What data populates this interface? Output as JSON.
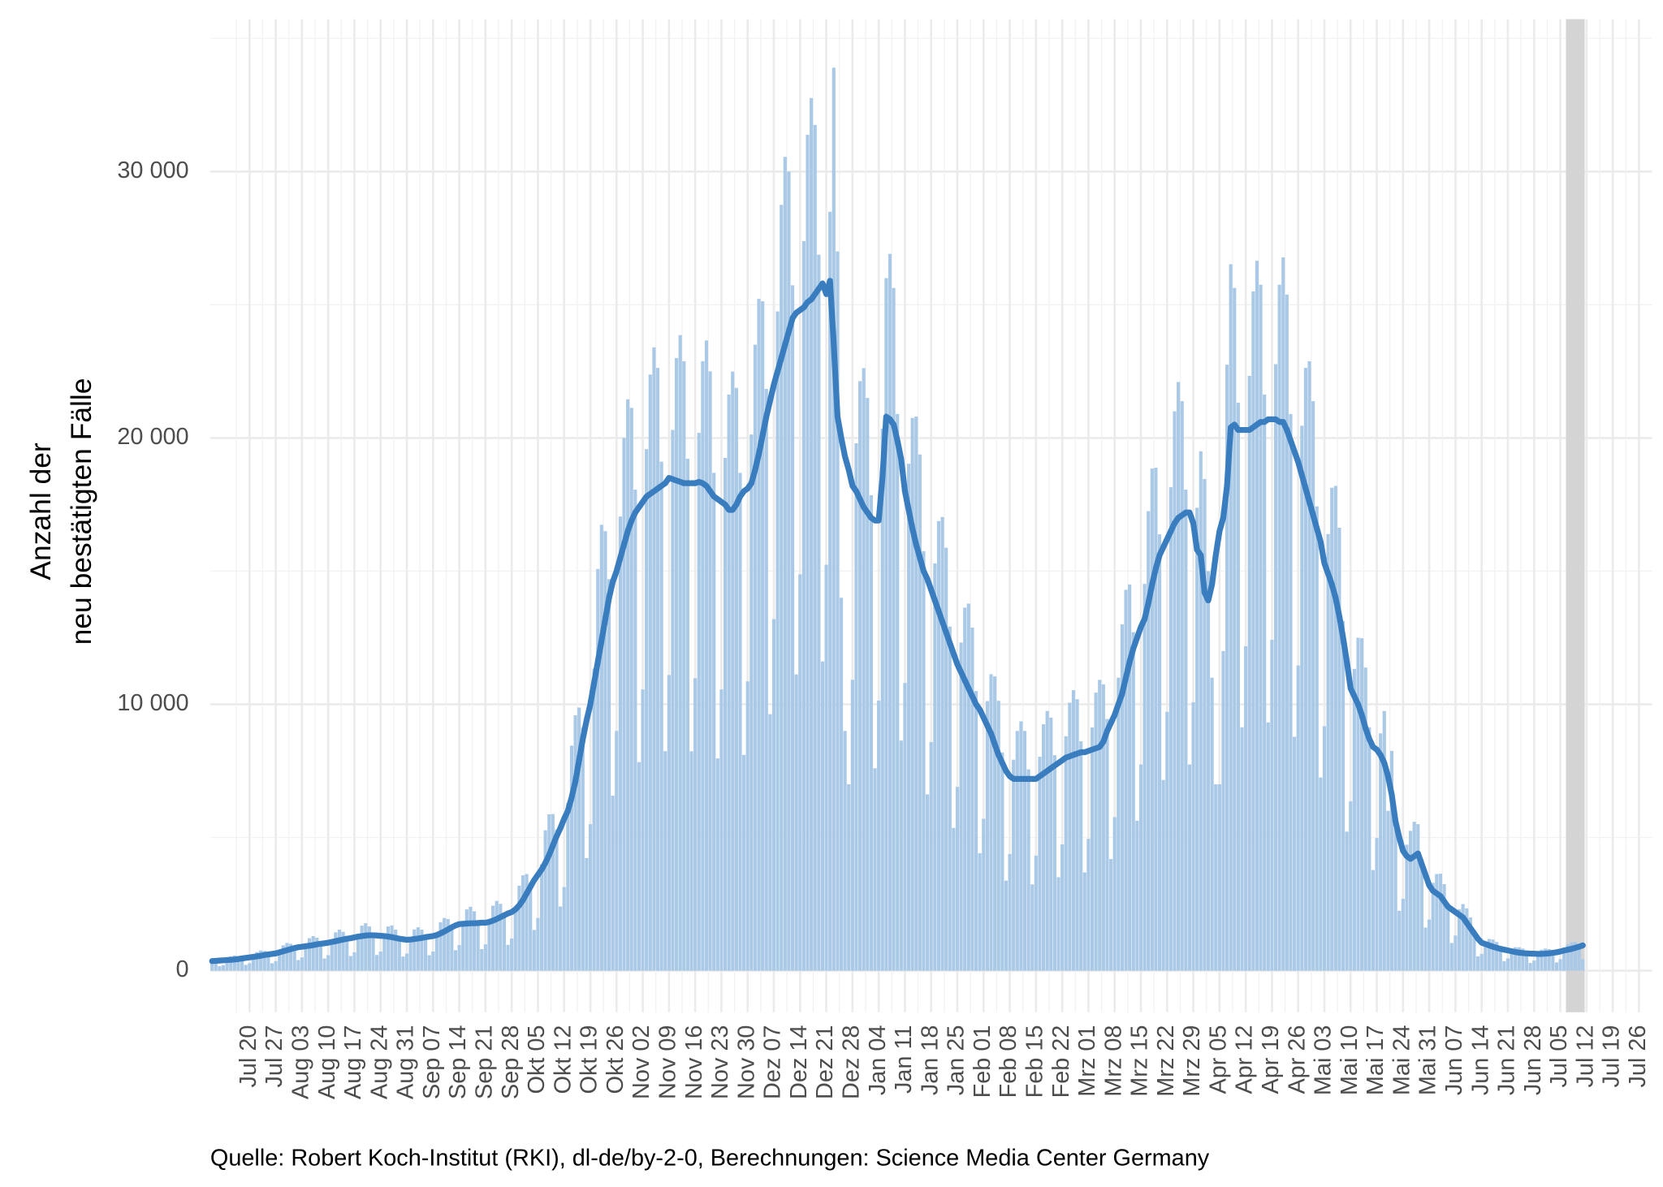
{
  "chart_data": {
    "type": "bar",
    "ylabel": [
      "Anzahl der",
      "neu bestätigten Fälle"
    ],
    "caption": "Quelle: Robert Koch-Institut (RKI), dl-de/by-2-0, Berechnungen: Science Media Center Germany",
    "categories": [
      null,
      null,
      null,
      null,
      null,
      null,
      null,
      null,
      null,
      null,
      "Jul 20",
      null,
      null,
      null,
      null,
      null,
      null,
      "Jul 27",
      null,
      null,
      null,
      null,
      null,
      null,
      "Aug 03",
      null,
      null,
      null,
      null,
      null,
      null,
      "Aug 10",
      null,
      null,
      null,
      null,
      null,
      null,
      "Aug 17",
      null,
      null,
      null,
      null,
      null,
      null,
      "Aug 24",
      null,
      null,
      null,
      null,
      null,
      null,
      "Aug 31",
      null,
      null,
      null,
      null,
      null,
      null,
      "Sep 07",
      null,
      null,
      null,
      null,
      null,
      null,
      "Sep 14",
      null,
      null,
      null,
      null,
      null,
      null,
      "Sep 21",
      null,
      null,
      null,
      null,
      null,
      null,
      "Sep 28",
      null,
      null,
      null,
      null,
      null,
      null,
      "Okt 05",
      null,
      null,
      null,
      null,
      null,
      null,
      "Okt 12",
      null,
      null,
      null,
      null,
      null,
      null,
      "Okt 19",
      null,
      null,
      null,
      null,
      null,
      null,
      "Okt 26",
      null,
      null,
      null,
      null,
      null,
      null,
      "Nov 02",
      null,
      null,
      null,
      null,
      null,
      null,
      "Nov 09",
      null,
      null,
      null,
      null,
      null,
      null,
      "Nov 16",
      null,
      null,
      null,
      null,
      null,
      null,
      "Nov 23",
      null,
      null,
      null,
      null,
      null,
      null,
      "Nov 30",
      null,
      null,
      null,
      null,
      null,
      null,
      "Dez 07",
      null,
      null,
      null,
      null,
      null,
      null,
      "Dez 14",
      null,
      null,
      null,
      null,
      null,
      null,
      "Dez 21",
      null,
      null,
      null,
      null,
      null,
      null,
      "Dez 28",
      null,
      null,
      null,
      null,
      null,
      null,
      "Jan 04",
      null,
      null,
      null,
      null,
      null,
      null,
      "Jan 11",
      null,
      null,
      null,
      null,
      null,
      null,
      "Jan 18",
      null,
      null,
      null,
      null,
      null,
      null,
      "Jan 25",
      null,
      null,
      null,
      null,
      null,
      null,
      "Feb 01",
      null,
      null,
      null,
      null,
      null,
      null,
      "Feb 08",
      null,
      null,
      null,
      null,
      null,
      null,
      "Feb 15",
      null,
      null,
      null,
      null,
      null,
      null,
      "Feb 22",
      null,
      null,
      null,
      null,
      null,
      null,
      "Mrz 01",
      null,
      null,
      null,
      null,
      null,
      null,
      "Mrz 08",
      null,
      null,
      null,
      null,
      null,
      null,
      "Mrz 15",
      null,
      null,
      null,
      null,
      null,
      null,
      "Mrz 22",
      null,
      null,
      null,
      null,
      null,
      null,
      "Mrz 29",
      null,
      null,
      null,
      null,
      null,
      null,
      "Apr 05",
      null,
      null,
      null,
      null,
      null,
      null,
      "Apr 12",
      null,
      null,
      null,
      null,
      null,
      null,
      "Apr 19",
      null,
      null,
      null,
      null,
      null,
      null,
      "Apr 26",
      null,
      null,
      null,
      null,
      null,
      null,
      "Mai 03",
      null,
      null,
      null,
      null,
      null,
      null,
      "Mai 10",
      null,
      null,
      null,
      null,
      null,
      null,
      "Mai 17",
      null,
      null,
      null,
      null,
      null,
      null,
      "Mai 24",
      null,
      null,
      null,
      null,
      null,
      null,
      "Mai 31",
      null,
      null,
      null,
      null,
      null,
      null,
      "Jun 07",
      null,
      null,
      null,
      null,
      null,
      null,
      "Jun 14",
      null,
      null,
      null,
      null,
      null,
      null,
      "Jun 21",
      null,
      null,
      null,
      null,
      null,
      null,
      "Jun 28",
      null,
      null,
      null,
      null,
      null,
      null,
      "Jul 05",
      null,
      null,
      null,
      null,
      null,
      null,
      "Jul 12",
      null,
      null,
      null,
      null,
      null,
      null,
      "Jul 19",
      null,
      null,
      null,
      null,
      null,
      null,
      "Jul 26",
      null,
      null,
      null
    ],
    "series": [
      {
        "type": "bar",
        "color": "#a9c9e6",
        "values": [
          450,
          390,
          170,
          210,
          420,
          530,
          570,
          550,
          480,
          220,
          280,
          550,
          700,
          760,
          740,
          640,
          280,
          360,
          720,
          950,
          1040,
          1010,
          890,
          400,
          500,
          970,
          1220,
          1300,
          1240,
          1060,
          460,
          580,
          1130,
          1440,
          1540,
          1460,
          1260,
          550,
          690,
          1340,
          1690,
          1780,
          1660,
          1400,
          590,
          720,
          1370,
          1660,
          1700,
          1540,
          1260,
          530,
          640,
          1230,
          1550,
          1630,
          1540,
          1320,
          580,
          720,
          1410,
          1820,
          1980,
          1940,
          1710,
          770,
          960,
          1850,
          2300,
          2400,
          2230,
          1880,
          810,
          990,
          1920,
          2440,
          2620,
          2510,
          2180,
          970,
          1210,
          2420,
          3190,
          3580,
          3630,
          3310,
          1530,
          1980,
          3990,
          5270,
          5870,
          5880,
          5300,
          2410,
          3140,
          6300,
          8450,
          9590,
          9880,
          9140,
          4230,
          5500,
          11340,
          15080,
          16740,
          16500,
          14700,
          6570,
          9000,
          17050,
          20000,
          21450,
          21130,
          18060,
          7830,
          10560,
          19580,
          22380,
          23400,
          22630,
          19110,
          8240,
          11100,
          20300,
          23000,
          23860,
          22880,
          19220,
          8240,
          10980,
          20190,
          22880,
          23660,
          22500,
          18690,
          7970,
          10560,
          19250,
          21630,
          22490,
          21880,
          18690,
          8100,
          10860,
          20130,
          23500,
          25220,
          25130,
          21840,
          9630,
          13200,
          24750,
          28750,
          30550,
          30000,
          25730,
          11120,
          14880,
          27390,
          31380,
          32760,
          31750,
          26880,
          11610,
          15240,
          28490,
          33900,
          27000,
          14000,
          9000,
          7000,
          10920,
          19800,
          22130,
          22620,
          21500,
          17850,
          7600,
          10140,
          20350,
          26000,
          26910,
          25630,
          20900,
          8640,
          10800,
          19030,
          20750,
          20800,
          19380,
          15750,
          6620,
          8580,
          15290,
          16880,
          17030,
          15880,
          12920,
          5360,
          6900,
          12320,
          13630,
          13780,
          12880,
          10500,
          4410,
          5700,
          10120,
          11130,
          11050,
          10130,
          8190,
          3380,
          4380,
          7920,
          9000,
          9360,
          9000,
          7560,
          3240,
          4320,
          8030,
          9250,
          9750,
          9500,
          8090,
          3510,
          4740,
          8800,
          10060,
          10530,
          10190,
          8610,
          3690,
          4950,
          9130,
          10440,
          10920,
          10750,
          9450,
          4190,
          5760,
          11000,
          13000,
          14300,
          14500,
          12710,
          5630,
          7740,
          14520,
          17250,
          18850,
          18880,
          16380,
          7160,
          9720,
          18150,
          21000,
          22100,
          21380,
          18060,
          7740,
          10080,
          17380,
          19500,
          18460,
          15000,
          11000,
          7000,
          7000,
          12000,
          22750,
          26520,
          25630,
          21320,
          9140,
          12180,
          22330,
          25500,
          26650,
          25750,
          21630,
          9320,
          12420,
          22770,
          25750,
          26780,
          25380,
          20900,
          8780,
          11460,
          20460,
          22630,
          22880,
          21380,
          17430,
          7250,
          9180,
          16390,
          18130,
          18200,
          16630,
          13130,
          5220,
          6360,
          11330,
          12500,
          12480,
          11380,
          9140,
          3780,
          4980,
          8910,
          9750,
          6000,
          8250,
          5880,
          2250,
          2700,
          4730,
          5250,
          5590,
          5500,
          4200,
          1620,
          1920,
          3300,
          3630,
          3640,
          3250,
          2520,
          1040,
          1320,
          2310,
          2500,
          2340,
          2000,
          1470,
          540,
          630,
          1100,
          1190,
          1170,
          1080,
          860,
          360,
          460,
          800,
          880,
          880,
          830,
          680,
          290,
          380,
          690,
          790,
          830,
          810,
          700,
          310,
          430,
          840,
          990,
          1070,
          1080,
          950,
          430,
          null,
          null,
          null,
          null,
          null,
          null,
          null,
          null,
          null,
          null,
          null,
          null,
          null,
          null,
          null,
          null,
          null,
          null
        ]
      },
      {
        "type": "line",
        "color": "#3a7dbf",
        "values": [
          360,
          370,
          380,
          390,
          400,
          410,
          420,
          440,
          460,
          480,
          500,
          520,
          540,
          560,
          590,
          610,
          630,
          650,
          690,
          730,
          770,
          810,
          850,
          880,
          900,
          920,
          940,
          960,
          990,
          1010,
          1030,
          1050,
          1080,
          1110,
          1140,
          1170,
          1200,
          1220,
          1250,
          1280,
          1300,
          1320,
          1330,
          1330,
          1320,
          1310,
          1300,
          1280,
          1260,
          1230,
          1200,
          1180,
          1160,
          1170,
          1190,
          1210,
          1230,
          1260,
          1280,
          1300,
          1340,
          1400,
          1470,
          1550,
          1630,
          1700,
          1750,
          1760,
          1770,
          1780,
          1780,
          1790,
          1800,
          1800,
          1830,
          1880,
          1940,
          2010,
          2080,
          2150,
          2200,
          2300,
          2450,
          2650,
          2900,
          3150,
          3400,
          3600,
          3800,
          4050,
          4350,
          4700,
          5050,
          5350,
          5700,
          6000,
          6500,
          7100,
          7900,
          8700,
          9400,
          10000,
          10800,
          11600,
          12400,
          13200,
          14000,
          14600,
          15000,
          15500,
          16000,
          16500,
          16900,
          17200,
          17400,
          17600,
          17800,
          17900,
          18000,
          18100,
          18200,
          18300,
          18500,
          18450,
          18400,
          18350,
          18300,
          18300,
          18300,
          18300,
          18350,
          18300,
          18200,
          18000,
          17800,
          17700,
          17600,
          17500,
          17300,
          17300,
          17500,
          17800,
          18000,
          18100,
          18300,
          18800,
          19400,
          20100,
          20800,
          21400,
          22000,
          22500,
          23000,
          23500,
          24000,
          24500,
          24700,
          24800,
          24900,
          25100,
          25200,
          25400,
          25600,
          25800,
          25400,
          25900,
          23500,
          20800,
          20000,
          19300,
          18800,
          18200,
          18000,
          17700,
          17400,
          17200,
          17000,
          16900,
          16900,
          18500,
          20800,
          20700,
          20500,
          19900,
          19200,
          18000,
          17300,
          16600,
          16000,
          15500,
          15000,
          14700,
          14300,
          13900,
          13500,
          13100,
          12700,
          12300,
          11900,
          11500,
          11200,
          10900,
          10600,
          10300,
          10000,
          9800,
          9500,
          9200,
          8900,
          8500,
          8100,
          7800,
          7500,
          7300,
          7200,
          7200,
          7200,
          7200,
          7200,
          7200,
          7200,
          7300,
          7400,
          7500,
          7600,
          7700,
          7800,
          7900,
          8000,
          8050,
          8100,
          8150,
          8200,
          8200,
          8250,
          8300,
          8350,
          8400,
          8600,
          9000,
          9300,
          9600,
          10000,
          10400,
          11000,
          11600,
          12100,
          12500,
          12900,
          13200,
          13800,
          14500,
          15100,
          15600,
          15900,
          16200,
          16500,
          16800,
          17000,
          17100,
          17200,
          17200,
          16800,
          15800,
          15600,
          14200,
          13900,
          14500,
          15600,
          16500,
          17000,
          18200,
          20400,
          20500,
          20300,
          20300,
          20300,
          20300,
          20400,
          20500,
          20600,
          20600,
          20700,
          20700,
          20700,
          20600,
          20600,
          20300,
          19900,
          19500,
          19100,
          18600,
          18100,
          17600,
          17100,
          16600,
          16100,
          15300,
          14900,
          14500,
          14000,
          13300,
          12500,
          11600,
          10600,
          10300,
          10000,
          9600,
          9100,
          8700,
          8400,
          8300,
          8100,
          7800,
          7300,
          6600,
          5600,
          5000,
          4500,
          4300,
          4200,
          4300,
          4400,
          4000,
          3600,
          3200,
          3000,
          2900,
          2800,
          2600,
          2400,
          2300,
          2200,
          2100,
          2000,
          1800,
          1600,
          1400,
          1200,
          1050,
          1000,
          950,
          900,
          860,
          820,
          790,
          760,
          730,
          700,
          680,
          660,
          650,
          640,
          640,
          630,
          630,
          640,
          650,
          670,
          690,
          720,
          760,
          790,
          820,
          860,
          900,
          950,
          null,
          null,
          null,
          null,
          null,
          null,
          null,
          null,
          null,
          null,
          null,
          null,
          null,
          null,
          null,
          null,
          null,
          null
        ]
      }
    ],
    "ylim": [
      -1560,
      35720
    ],
    "yticks": [
      0,
      {
        "value": 10000,
        "label": "10 000"
      },
      {
        "value": 20000,
        "label": "20 000"
      },
      {
        "value": 30000,
        "label": "30 000"
      }
    ],
    "grid": true,
    "minor_grid": true,
    "shaded_days": 5,
    "shade_color": "#d4d4d4"
  }
}
